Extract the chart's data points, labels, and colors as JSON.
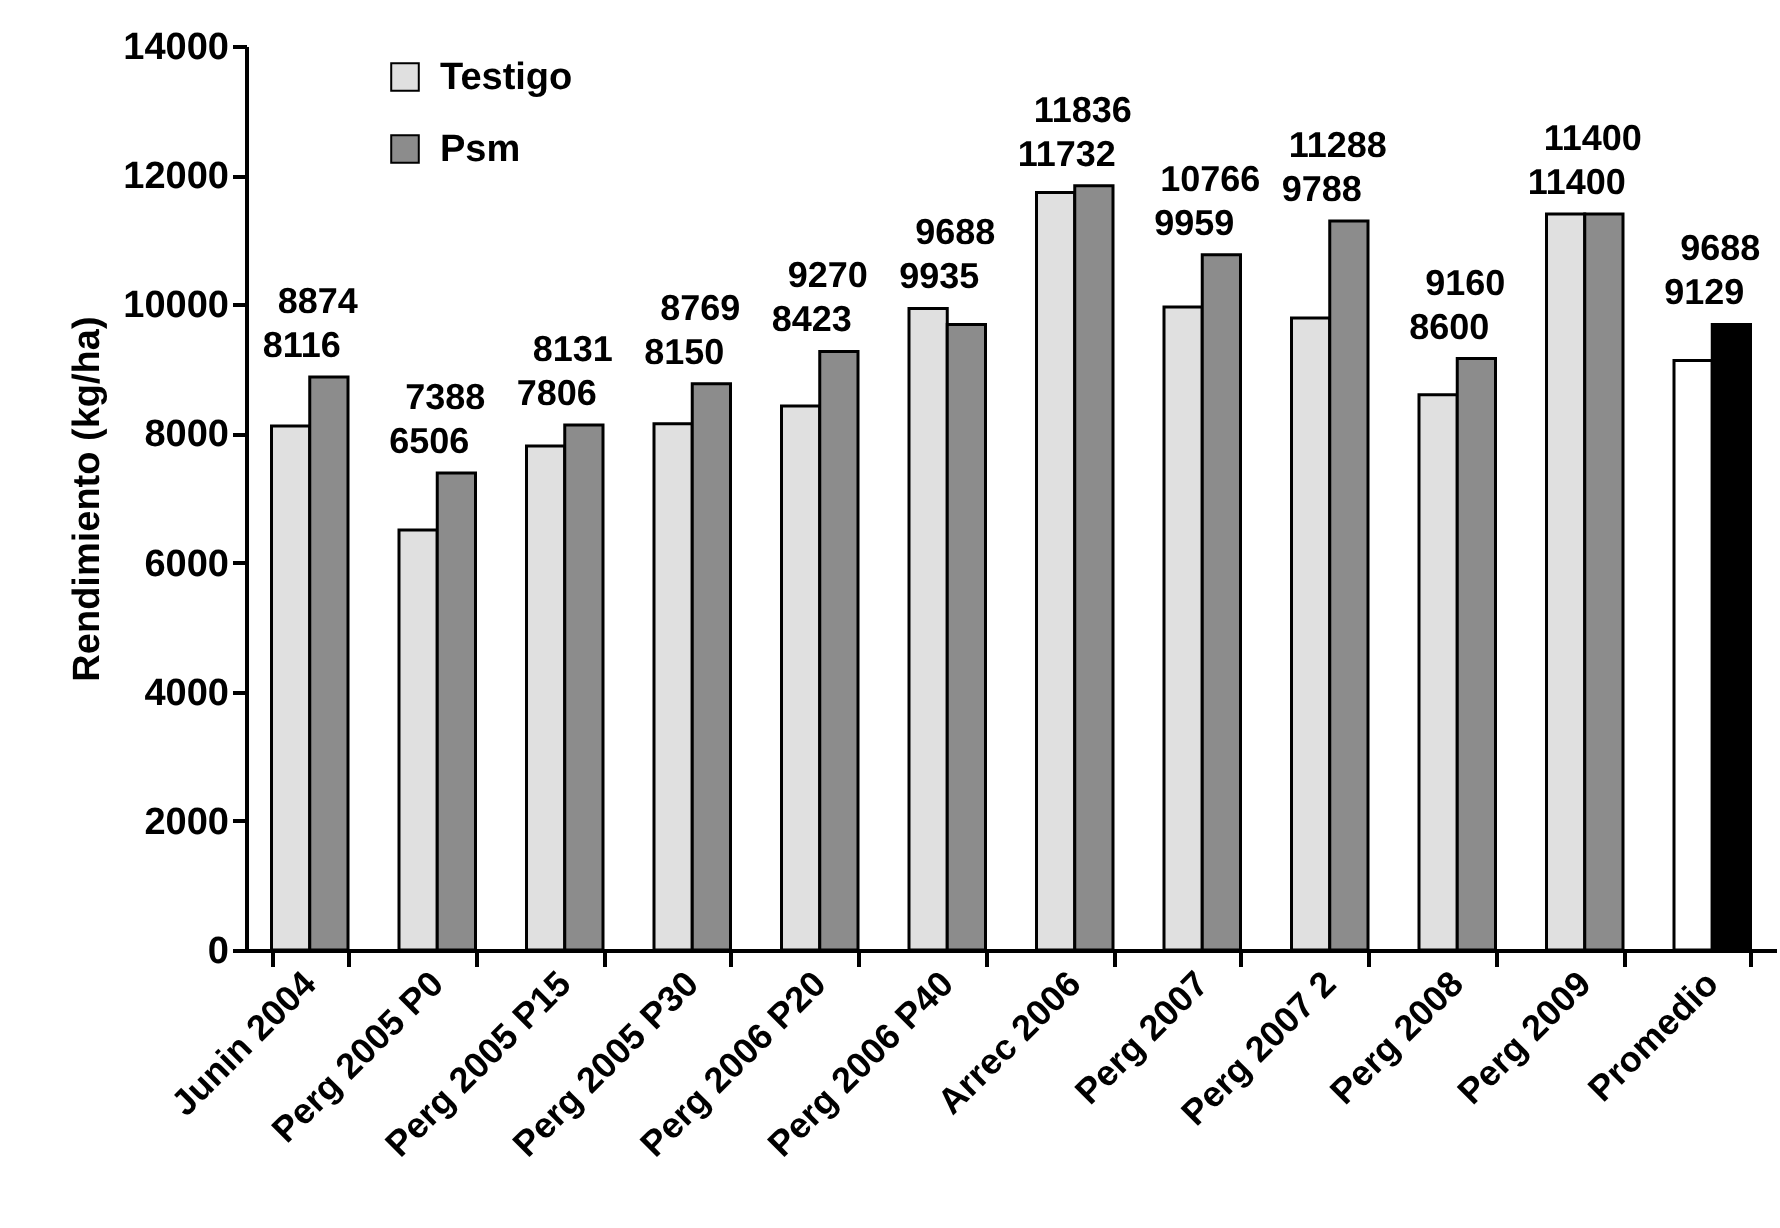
{
  "chart_data": {
    "type": "bar",
    "ylabel": "Rendimiento (kg/ha)",
    "categories": [
      "Junin 2004",
      "Perg 2005 P0",
      "Perg 2005 P15",
      "Perg 2005 P30",
      "Perg 2006 P20",
      "Perg 2006 P40",
      "Arrec 2006",
      "Perg 2007",
      "Perg 2007 2",
      "Perg 2008",
      "Perg 2009",
      "Promedio"
    ],
    "series": [
      {
        "name": "Testigo",
        "color": "#e0e0e0",
        "colors": [
          "#e0e0e0",
          "#e0e0e0",
          "#e0e0e0",
          "#e0e0e0",
          "#e0e0e0",
          "#e0e0e0",
          "#e0e0e0",
          "#e0e0e0",
          "#e0e0e0",
          "#e0e0e0",
          "#e0e0e0",
          "#ffffff"
        ],
        "values": [
          8116,
          6506,
          7806,
          8150,
          8423,
          9935,
          11732,
          9959,
          9788,
          8600,
          11400,
          9129
        ]
      },
      {
        "name": "Psm",
        "color": "#8c8c8c",
        "colors": [
          "#8c8c8c",
          "#8c8c8c",
          "#8c8c8c",
          "#8c8c8c",
          "#8c8c8c",
          "#8c8c8c",
          "#8c8c8c",
          "#8c8c8c",
          "#8c8c8c",
          "#8c8c8c",
          "#8c8c8c",
          "#000000"
        ],
        "values": [
          8874,
          7388,
          8131,
          8769,
          9270,
          9688,
          11836,
          10766,
          11288,
          9160,
          11400,
          9688
        ]
      }
    ],
    "ylim": [
      0,
      14000
    ],
    "yticks": [
      0,
      2000,
      4000,
      6000,
      8000,
      10000,
      12000,
      14000
    ],
    "data_labels": true,
    "legend": "top left"
  }
}
